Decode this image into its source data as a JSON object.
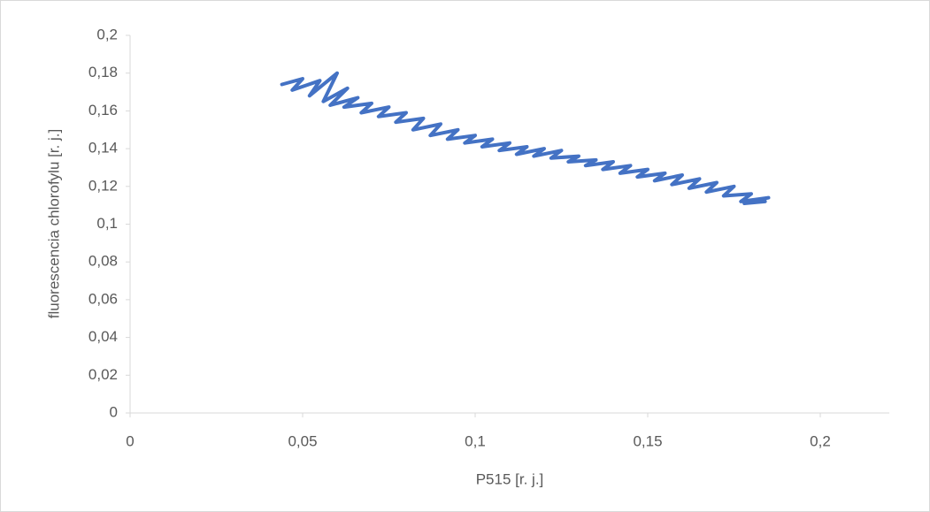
{
  "chart_data": {
    "type": "line",
    "x_label": "P515 [r. j.]",
    "y_label": "fluorescencia chlorofylu [r. j.]",
    "series": [
      {
        "color": "#4472c4",
        "x": [
          0.044,
          0.05,
          0.047,
          0.055,
          0.052,
          0.06,
          0.056,
          0.063,
          0.058,
          0.066,
          0.062,
          0.07,
          0.067,
          0.075,
          0.072,
          0.08,
          0.077,
          0.085,
          0.082,
          0.09,
          0.087,
          0.095,
          0.092,
          0.1,
          0.097,
          0.105,
          0.102,
          0.11,
          0.107,
          0.115,
          0.112,
          0.12,
          0.117,
          0.125,
          0.122,
          0.13,
          0.127,
          0.135,
          0.132,
          0.14,
          0.137,
          0.145,
          0.142,
          0.15,
          0.147,
          0.155,
          0.152,
          0.16,
          0.157,
          0.165,
          0.162,
          0.17,
          0.167,
          0.175,
          0.172,
          0.18,
          0.177,
          0.185,
          0.178,
          0.184
        ],
        "values": [
          0.174,
          0.177,
          0.171,
          0.176,
          0.168,
          0.18,
          0.165,
          0.172,
          0.163,
          0.167,
          0.162,
          0.164,
          0.159,
          0.162,
          0.157,
          0.159,
          0.154,
          0.156,
          0.15,
          0.153,
          0.147,
          0.15,
          0.145,
          0.147,
          0.143,
          0.145,
          0.141,
          0.143,
          0.139,
          0.141,
          0.137,
          0.14,
          0.136,
          0.139,
          0.135,
          0.136,
          0.133,
          0.134,
          0.131,
          0.133,
          0.129,
          0.131,
          0.127,
          0.129,
          0.125,
          0.127,
          0.123,
          0.126,
          0.121,
          0.124,
          0.119,
          0.122,
          0.117,
          0.12,
          0.115,
          0.116,
          0.112,
          0.114,
          0.111,
          0.112
        ]
      }
    ],
    "xlim": [
      0,
      0.22
    ],
    "xticks": [
      0,
      {
        "value": 0.05,
        "label": "0,05"
      },
      {
        "value": 0.1,
        "label": "0,1"
      },
      {
        "value": 0.15,
        "label": "0,15"
      },
      {
        "value": 0.2,
        "label": "0,2"
      }
    ],
    "ylim": [
      0,
      0.2
    ],
    "yticks": [
      0,
      {
        "value": 0.02,
        "label": "0,02"
      },
      {
        "value": 0.04,
        "label": "0,04"
      },
      {
        "value": 0.06,
        "label": "0,06"
      },
      {
        "value": 0.08,
        "label": "0,08"
      },
      {
        "value": 0.1,
        "label": "0,1"
      },
      {
        "value": 0.12,
        "label": "0,12"
      },
      {
        "value": 0.14,
        "label": "0,14"
      },
      {
        "value": 0.16,
        "label": "0,16"
      },
      {
        "value": 0.18,
        "label": "0,18"
      },
      {
        "value": 0.2,
        "label": "0,2"
      }
    ],
    "grid": false
  }
}
